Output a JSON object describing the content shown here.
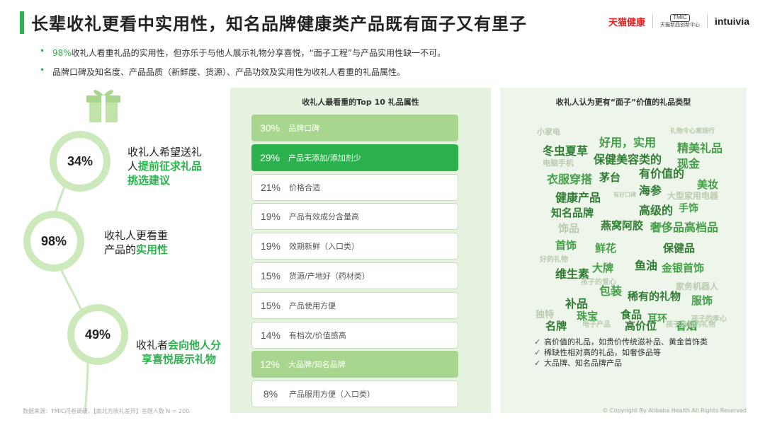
{
  "header": {
    "title": "长辈收礼更看中实用性，知名品牌健康类产品既有面子又有里子",
    "logos": {
      "tmall": "天猫健康",
      "tmic_box": "TMIC",
      "tmic_sub": "天猫新品创新中心",
      "intuivia": "intuivia"
    }
  },
  "bullets": [
    {
      "pct": "98%",
      "text": "收礼人看重礼品的实用性，但亦乐于与他人展示礼物分享喜悦，“面子工程”与产品实用性缺一不可。"
    },
    {
      "pct": "",
      "text": "品牌口碑及知名度、产品品质（新鲜度、货源）、产品功效及实用性为收礼人看重的礼品属性。"
    }
  ],
  "left": {
    "items": [
      {
        "pct": "34%",
        "fraction": 0.34,
        "line1": "收礼人希望送礼",
        "line2a": "人",
        "line2b": "提前征求礼品",
        "line3": "挑选建议"
      },
      {
        "pct": "98%",
        "fraction": 0.98,
        "line1": "收礼人更看重",
        "line2a": "产品的",
        "line2b": "实用性",
        "line3": ""
      },
      {
        "pct": "49%",
        "fraction": 0.49,
        "line1a": "收礼者",
        "line1b": "会向他人分",
        "line2b": "享喜悦展示礼物"
      }
    ]
  },
  "mid": {
    "title": "收礼人最看重的Top 10 礼品属性",
    "bars": [
      {
        "pct": "30%",
        "label": "品牌口碑",
        "style": "light"
      },
      {
        "pct": "29%",
        "label": "产品无添加/添加剂少",
        "style": "dark"
      },
      {
        "pct": "21%",
        "label": "价格合适",
        "style": "white"
      },
      {
        "pct": "19%",
        "label": "产品有效成分含量高",
        "style": "white"
      },
      {
        "pct": "19%",
        "label": "效期新鲜（入口类）",
        "style": "white"
      },
      {
        "pct": "15%",
        "label": "货源/产地好（药材类）",
        "style": "white"
      },
      {
        "pct": "15%",
        "label": "产品使用方便",
        "style": "white"
      },
      {
        "pct": "14%",
        "label": "有档次/价值感高",
        "style": "white"
      },
      {
        "pct": "12%",
        "label": "大品牌/知名品牌",
        "style": "light"
      },
      {
        "pct": "8%",
        "label": "产品服用方便（入口类）",
        "style": "white"
      }
    ]
  },
  "right": {
    "title": "收礼人认为更有“面子”价值的礼品类型",
    "cloud": [
      "小家电",
      "礼物令心意践行",
      "好用，实用",
      "精美礼品",
      "冬虫夏草",
      "保健美容类的",
      "现金",
      "电脑手机",
      "有价值的",
      "衣服穿搭",
      "茅台",
      "海参",
      "美妆",
      "健康产品",
      "大型家用电器",
      "有好口碑",
      "高级的",
      "手饰",
      "知名品牌",
      "饰品",
      "燕窝阿胶",
      "奢侈品高档品",
      "首饰",
      "鲜花",
      "保健品",
      "好的礼物",
      "维生素",
      "大牌",
      "鱼油",
      "金银首饰",
      "孩子的爱心",
      "包装",
      "家务机器人",
      "补品",
      "稀有的礼物",
      "服饰",
      "独特",
      "珠宝",
      "食品",
      "耳环",
      "孩子的孝心",
      "名牌",
      "高价位",
      "香烟",
      "电子产品",
      "孩子自制的礼物"
    ],
    "notes": [
      "高价值的礼品，如贵价传统滋补品、黄金首饰类",
      "稀缺性相对高的礼品，如奢侈品等",
      "大品牌、知名品牌产品"
    ]
  },
  "footer": {
    "source": "数据来源：TMIC问卷调研，【南北方收礼差异】答题人数 N = 200",
    "copyright": "© Copyright By Alibaba Health All Rights Reserved"
  },
  "colors": {
    "accent": "#2bb24c",
    "light": "#a9d68f",
    "ring": "#cbe9bb"
  }
}
